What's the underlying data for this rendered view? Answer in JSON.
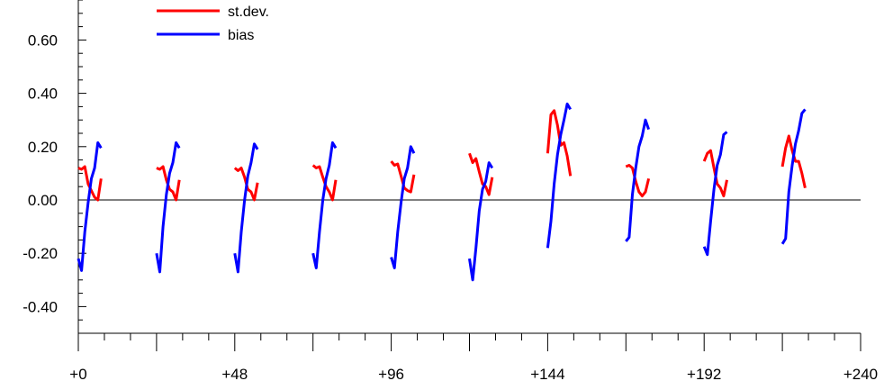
{
  "chart_data": {
    "type": "line",
    "xlabel": "",
    "ylabel": "",
    "xlim": [
      0,
      240
    ],
    "ylim": [
      -0.5,
      0.75
    ],
    "x_ticks": [
      0,
      48,
      96,
      144,
      192,
      240
    ],
    "x_tick_labels": [
      "+0",
      "+48",
      "+96",
      "+144",
      "+192",
      "+240"
    ],
    "y_ticks": [
      -0.4,
      -0.2,
      0.0,
      0.2,
      0.4,
      0.6
    ],
    "y_tick_labels": [
      "-0.40",
      "-0.20",
      "0.00",
      "0.20",
      "0.40",
      "0.60"
    ],
    "zero_line": true,
    "legend_position": "top-left",
    "series": [
      {
        "name": "st.dev.",
        "color": "#ff0000",
        "segments": [
          {
            "x": [
              0,
              1,
              2,
              3,
              4,
              5,
              6,
              7
            ],
            "y": [
              0.12,
              0.115,
              0.125,
              0.06,
              0.035,
              0.01,
              0.0,
              0.08
            ]
          },
          {
            "x": [
              24,
              25,
              26,
              27,
              28,
              29,
              30,
              31
            ],
            "y": [
              0.12,
              0.115,
              0.125,
              0.075,
              0.04,
              0.03,
              0.0,
              0.075
            ]
          },
          {
            "x": [
              48,
              49,
              50,
              51,
              52,
              53,
              54,
              55
            ],
            "y": [
              0.12,
              0.11,
              0.12,
              0.085,
              0.04,
              0.03,
              0.0,
              0.065
            ]
          },
          {
            "x": [
              72,
              73,
              74,
              75,
              76,
              77,
              78,
              79
            ],
            "y": [
              0.13,
              0.12,
              0.125,
              0.085,
              0.05,
              0.03,
              0.0,
              0.075
            ]
          },
          {
            "x": [
              96,
              97,
              98,
              99,
              100,
              101,
              102,
              103
            ],
            "y": [
              0.145,
              0.13,
              0.135,
              0.09,
              0.045,
              0.035,
              0.03,
              0.095
            ]
          },
          {
            "x": [
              120,
              121,
              122,
              123,
              124,
              125,
              126,
              127
            ],
            "y": [
              0.175,
              0.14,
              0.155,
              0.105,
              0.06,
              0.05,
              0.02,
              0.085
            ]
          },
          {
            "x": [
              144,
              145,
              146,
              147,
              148,
              149,
              150,
              151
            ],
            "y": [
              0.175,
              0.32,
              0.335,
              0.28,
              0.205,
              0.215,
              0.165,
              0.09
            ]
          },
          {
            "x": [
              168,
              169,
              170,
              171,
              172,
              173,
              174,
              175
            ],
            "y": [
              0.125,
              0.13,
              0.12,
              0.07,
              0.03,
              0.015,
              0.03,
              0.08
            ]
          },
          {
            "x": [
              192,
              193,
              194,
              195,
              196,
              197,
              198,
              199
            ],
            "y": [
              0.145,
              0.175,
              0.185,
              0.12,
              0.06,
              0.045,
              0.015,
              0.075
            ]
          },
          {
            "x": [
              216,
              217,
              218,
              219,
              220,
              221,
              222,
              223
            ],
            "y": [
              0.125,
              0.195,
              0.24,
              0.185,
              0.145,
              0.145,
              0.1,
              0.045
            ]
          }
        ]
      },
      {
        "name": "bias",
        "color": "#0000ff",
        "segments": [
          {
            "x": [
              0,
              1,
              2,
              3,
              4,
              5,
              6,
              7
            ],
            "y": [
              -0.22,
              -0.265,
              -0.12,
              -0.01,
              0.08,
              0.12,
              0.215,
              0.195
            ]
          },
          {
            "x": [
              24,
              25,
              26,
              27,
              28,
              29,
              30,
              31
            ],
            "y": [
              -0.2,
              -0.27,
              -0.1,
              0.02,
              0.1,
              0.14,
              0.215,
              0.195
            ]
          },
          {
            "x": [
              48,
              49,
              50,
              51,
              52,
              53,
              54,
              55
            ],
            "y": [
              -0.2,
              -0.27,
              -0.12,
              0.0,
              0.09,
              0.14,
              0.21,
              0.19
            ]
          },
          {
            "x": [
              72,
              73,
              74,
              75,
              76,
              77,
              78,
              79
            ],
            "y": [
              -0.2,
              -0.255,
              -0.12,
              0.0,
              0.08,
              0.13,
              0.215,
              0.195
            ]
          },
          {
            "x": [
              96,
              97,
              98,
              99,
              100,
              101,
              102,
              103
            ],
            "y": [
              -0.215,
              -0.255,
              -0.12,
              -0.01,
              0.08,
              0.12,
              0.2,
              0.175
            ]
          },
          {
            "x": [
              120,
              121,
              122,
              123,
              124,
              125,
              126,
              127
            ],
            "y": [
              -0.22,
              -0.3,
              -0.18,
              -0.04,
              0.04,
              0.07,
              0.14,
              0.12
            ]
          },
          {
            "x": [
              144,
              145,
              146,
              147,
              148,
              149,
              150,
              151
            ],
            "y": [
              -0.18,
              -0.08,
              0.06,
              0.17,
              0.245,
              0.3,
              0.36,
              0.34
            ]
          },
          {
            "x": [
              168,
              169,
              170,
              171,
              172,
              173,
              174,
              175
            ],
            "y": [
              -0.155,
              -0.14,
              0.02,
              0.12,
              0.2,
              0.24,
              0.3,
              0.265
            ]
          },
          {
            "x": [
              192,
              193,
              194,
              195,
              196,
              197,
              198,
              199
            ],
            "y": [
              -0.175,
              -0.205,
              -0.08,
              0.04,
              0.13,
              0.17,
              0.245,
              0.255
            ]
          },
          {
            "x": [
              216,
              217,
              218,
              219,
              220,
              221,
              222,
              223
            ],
            "y": [
              -0.165,
              -0.145,
              0.03,
              0.13,
              0.21,
              0.26,
              0.325,
              0.34
            ]
          }
        ]
      }
    ]
  }
}
